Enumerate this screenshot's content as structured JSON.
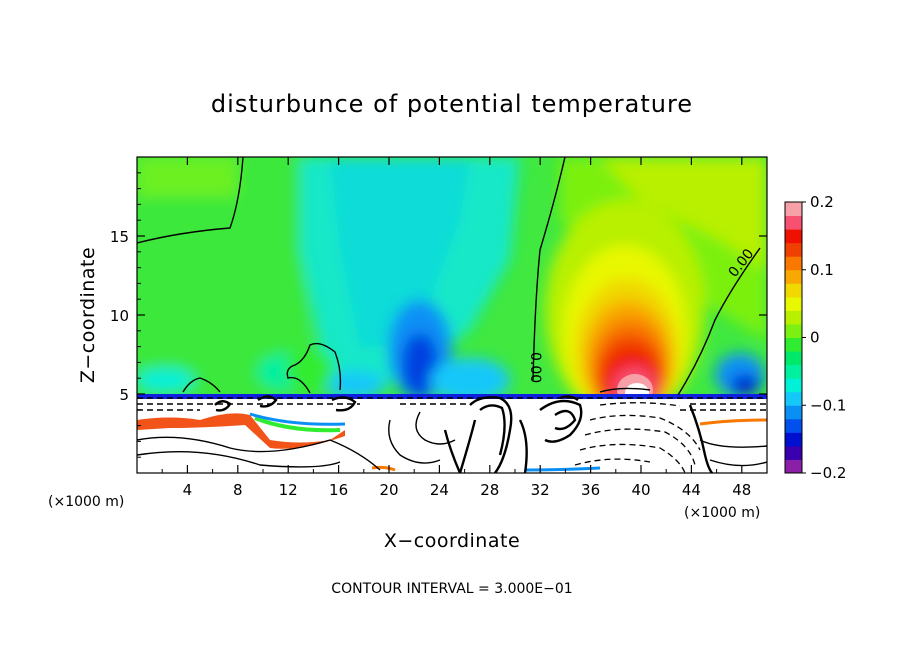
{
  "chart_data": {
    "type": "heatmap",
    "title": "disturbunce of potential temperature",
    "xlabel": "X−coordinate",
    "ylabel": "Z−coordinate",
    "x_unit": "(×1000 m)",
    "y_unit": "(×1000 m)",
    "xlim": [
      0,
      50
    ],
    "ylim": [
      0,
      20
    ],
    "x_ticks": [
      4,
      8,
      12,
      16,
      20,
      24,
      28,
      32,
      36,
      40,
      44,
      48
    ],
    "y_ticks": [
      5,
      10,
      15
    ],
    "x_tick_labels": [
      "4",
      "8",
      "12",
      "16",
      "20",
      "24",
      "28",
      "32",
      "36",
      "40",
      "44",
      "48"
    ],
    "y_tick_labels": [
      "5",
      "10",
      "15"
    ],
    "colorbar": {
      "range": [
        -0.2,
        0.2
      ],
      "tick_values": [
        0.2,
        0.1,
        0,
        -0.1,
        -0.2
      ],
      "tick_labels": [
        "0.2",
        "0.1",
        "0",
        "−0.1",
        "−0.2"
      ],
      "colors": [
        "#8b1fa8",
        "#3a00b0",
        "#0010d0",
        "#0050ee",
        "#0a90f5",
        "#14c8fa",
        "#00f0d8",
        "#00f0a0",
        "#00e86a",
        "#30ec30",
        "#7cf010",
        "#b8f000",
        "#e8f800",
        "#f0d800",
        "#f8a800",
        "#f87800",
        "#f04000",
        "#f01000",
        "#f85070",
        "#f8a0a8"
      ]
    },
    "contour_labels": [
      "0.00",
      "0.00"
    ],
    "footnote": "CONTOUR INTERVAL = 3.000E−01"
  }
}
